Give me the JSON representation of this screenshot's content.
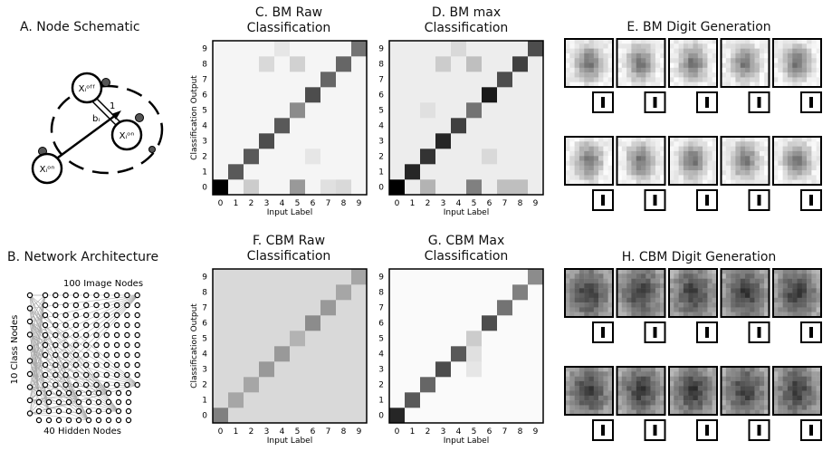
{
  "panels": {
    "a_title": "A. Node Schematic",
    "b_title": "B. Network Architecture",
    "c_title": [
      "C. BM Raw",
      "Classification"
    ],
    "d_title": [
      "D. BM max",
      "Classification"
    ],
    "e_title": "E. BM Digit Generation",
    "f_title": [
      "F. CBM Raw",
      "Classification"
    ],
    "g_title": [
      "G. CBM Max",
      "Classification"
    ],
    "h_title": "H. CBM Digit Generation"
  },
  "schematic": {
    "node_off": "Xᵢᵒᶠᶠ",
    "node_on_right": "Xᵢᵒⁿ",
    "node_on_left": "Xᵢᵒⁿ",
    "weight_label": "1",
    "bias_label": "bᵢ"
  },
  "architecture": {
    "image_nodes_label": "100 Image Nodes",
    "class_nodes_label": "10 Class Nodes",
    "hidden_nodes_label": "40 Hidden Nodes"
  },
  "matrix_axes": {
    "ylabel": "Classification Output",
    "xlabel": "Input Label",
    "ticks": [
      "0",
      "1",
      "2",
      "3",
      "4",
      "5",
      "6",
      "7",
      "8",
      "9"
    ]
  },
  "chart_data": [
    {
      "type": "heatmap",
      "title": "C. BM Raw Classification",
      "xlabel": "Input Label",
      "ylabel": "Classification Output",
      "x": [
        0,
        1,
        2,
        3,
        4,
        5,
        6,
        7,
        8,
        9
      ],
      "y": [
        0,
        1,
        2,
        3,
        4,
        5,
        6,
        7,
        8,
        9
      ],
      "diagonal": [
        1.0,
        0.65,
        0.65,
        0.7,
        0.65,
        0.45,
        0.7,
        0.6,
        0.6,
        0.55
      ],
      "off_diagonal": 0.04,
      "extra": [
        [
          2,
          0,
          0.2
        ],
        [
          5,
          0,
          0.4
        ],
        [
          7,
          0,
          0.12
        ],
        [
          8,
          0,
          0.15
        ],
        [
          6,
          2,
          0.1
        ],
        [
          3,
          8,
          0.15
        ],
        [
          5,
          8,
          0.18
        ],
        [
          4,
          9,
          0.1
        ]
      ]
    },
    {
      "type": "heatmap",
      "title": "D. BM max Classification",
      "xlabel": "Input Label",
      "ylabel": "Classification Output",
      "x": [
        0,
        1,
        2,
        3,
        4,
        5,
        6,
        7,
        8,
        9
      ],
      "y": [
        0,
        1,
        2,
        3,
        4,
        5,
        6,
        7,
        8,
        9
      ],
      "diagonal": [
        1.0,
        0.85,
        0.8,
        0.85,
        0.75,
        0.55,
        0.9,
        0.7,
        0.75,
        0.7
      ],
      "off_diagonal": 0.07,
      "extra": [
        [
          2,
          0,
          0.3
        ],
        [
          5,
          0,
          0.5
        ],
        [
          7,
          0,
          0.25
        ],
        [
          8,
          0,
          0.25
        ],
        [
          6,
          2,
          0.15
        ],
        [
          3,
          8,
          0.2
        ],
        [
          5,
          8,
          0.25
        ],
        [
          4,
          9,
          0.15
        ],
        [
          2,
          5,
          0.12
        ]
      ]
    },
    {
      "type": "heatmap",
      "title": "F. CBM Raw Classification",
      "xlabel": "Input Label",
      "ylabel": "Classification Output",
      "x": [
        0,
        1,
        2,
        3,
        4,
        5,
        6,
        7,
        8,
        9
      ],
      "y": [
        0,
        1,
        2,
        3,
        4,
        5,
        6,
        7,
        8,
        9
      ],
      "diagonal": [
        0.5,
        0.35,
        0.35,
        0.4,
        0.4,
        0.3,
        0.45,
        0.4,
        0.35,
        0.35
      ],
      "off_diagonal": 0.15,
      "extra": []
    },
    {
      "type": "heatmap",
      "title": "G. CBM Max Classification",
      "xlabel": "Input Label",
      "ylabel": "Classification Output",
      "x": [
        0,
        1,
        2,
        3,
        4,
        5,
        6,
        7,
        8,
        9
      ],
      "y": [
        0,
        1,
        2,
        3,
        4,
        5,
        6,
        7,
        8,
        9
      ],
      "diagonal": [
        0.85,
        0.65,
        0.6,
        0.7,
        0.65,
        0.2,
        0.7,
        0.55,
        0.5,
        0.45
      ],
      "off_diagonal": 0.02,
      "extra": [
        [
          5,
          4,
          0.12
        ],
        [
          5,
          3,
          0.1
        ]
      ]
    }
  ]
}
